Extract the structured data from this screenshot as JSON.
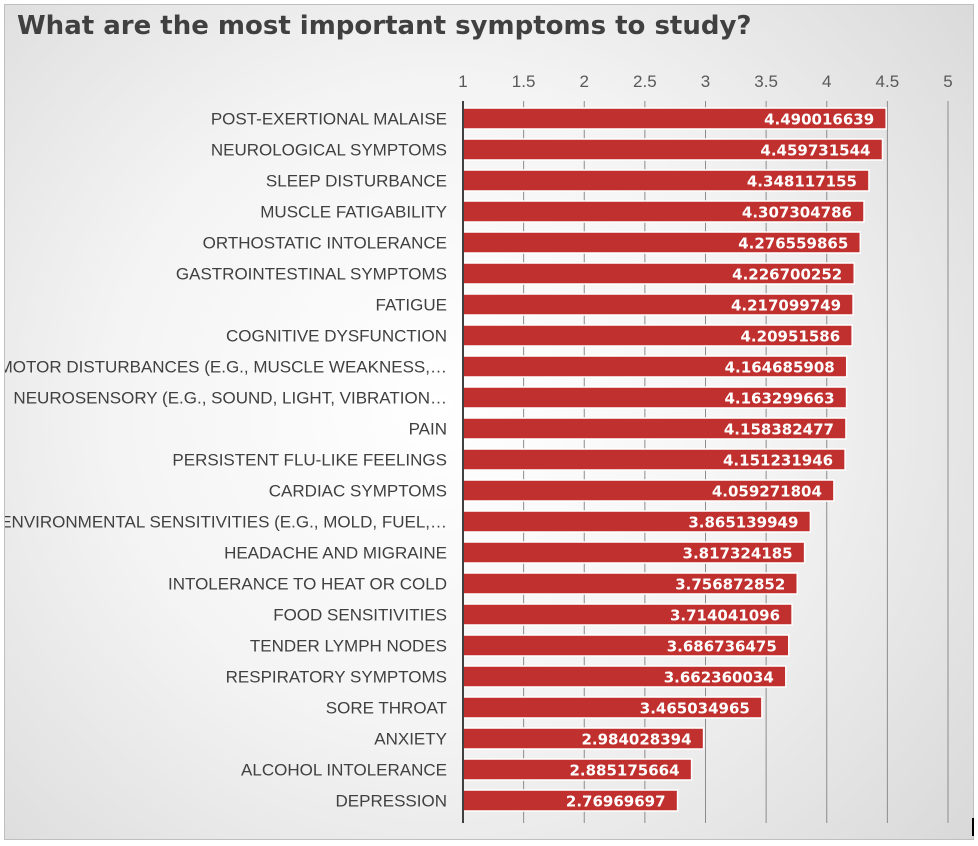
{
  "chart_data": {
    "type": "bar",
    "orientation": "horizontal",
    "title": "What are the most important symptoms to study?",
    "xlim": [
      1,
      5
    ],
    "x_ticks": [
      "1",
      "1.5",
      "2",
      "2.5",
      "3",
      "3.5",
      "4",
      "4.5",
      "5"
    ],
    "x_tick_values": [
      1,
      1.5,
      2,
      2.5,
      3,
      3.5,
      4,
      4.5,
      5
    ],
    "grid": true,
    "bar_color": "#c0302e",
    "categories": [
      "POST-EXERTIONAL MALAISE",
      "NEUROLOGICAL SYMPTOMS",
      "SLEEP DISTURBANCE",
      "MUSCLE FATIGABILITY",
      "ORTHOSTATIC INTOLERANCE",
      "GASTROINTESTINAL SYMPTOMS",
      "FATIGUE",
      "COGNITIVE DYSFUNCTION",
      "MOTOR DISTURBANCES (E.G., MUSCLE WEAKNESS,…",
      "NEUROSENSORY (E.G., SOUND, LIGHT, VIBRATION…",
      "PAIN",
      "PERSISTENT FLU-LIKE FEELINGS",
      "CARDIAC SYMPTOMS",
      "ENVIRONMENTAL SENSITIVITIES (E.G., MOLD, FUEL,…",
      "HEADACHE AND MIGRAINE",
      "INTOLERANCE TO HEAT OR COLD",
      "FOOD SENSITIVITIES",
      "TENDER LYMPH NODES",
      "RESPIRATORY SYMPTOMS",
      "SORE THROAT",
      "ANXIETY",
      "ALCOHOL INTOLERANCE",
      "DEPRESSION"
    ],
    "values": [
      4.490016639,
      4.459731544,
      4.348117155,
      4.307304786,
      4.276559865,
      4.226700252,
      4.217099749,
      4.20951586,
      4.164685908,
      4.163299663,
      4.158382477,
      4.151231946,
      4.059271804,
      3.865139949,
      3.817324185,
      3.756872852,
      3.714041096,
      3.686736475,
      3.662360034,
      3.465034965,
      2.984028394,
      2.885175664,
      2.76969697
    ],
    "value_labels": [
      "4.490016639",
      "4.459731544",
      "4.348117155",
      "4.307304786",
      "4.276559865",
      "4.226700252",
      "4.217099749",
      "4.20951586",
      "4.164685908",
      "4.163299663",
      "4.158382477",
      "4.151231946",
      "4.059271804",
      "3.865139949",
      "3.817324185",
      "3.756872852",
      "3.714041096",
      "3.686736475",
      "3.662360034",
      "3.465034965",
      "2.984028394",
      "2.885175664",
      "2.76969697"
    ]
  }
}
